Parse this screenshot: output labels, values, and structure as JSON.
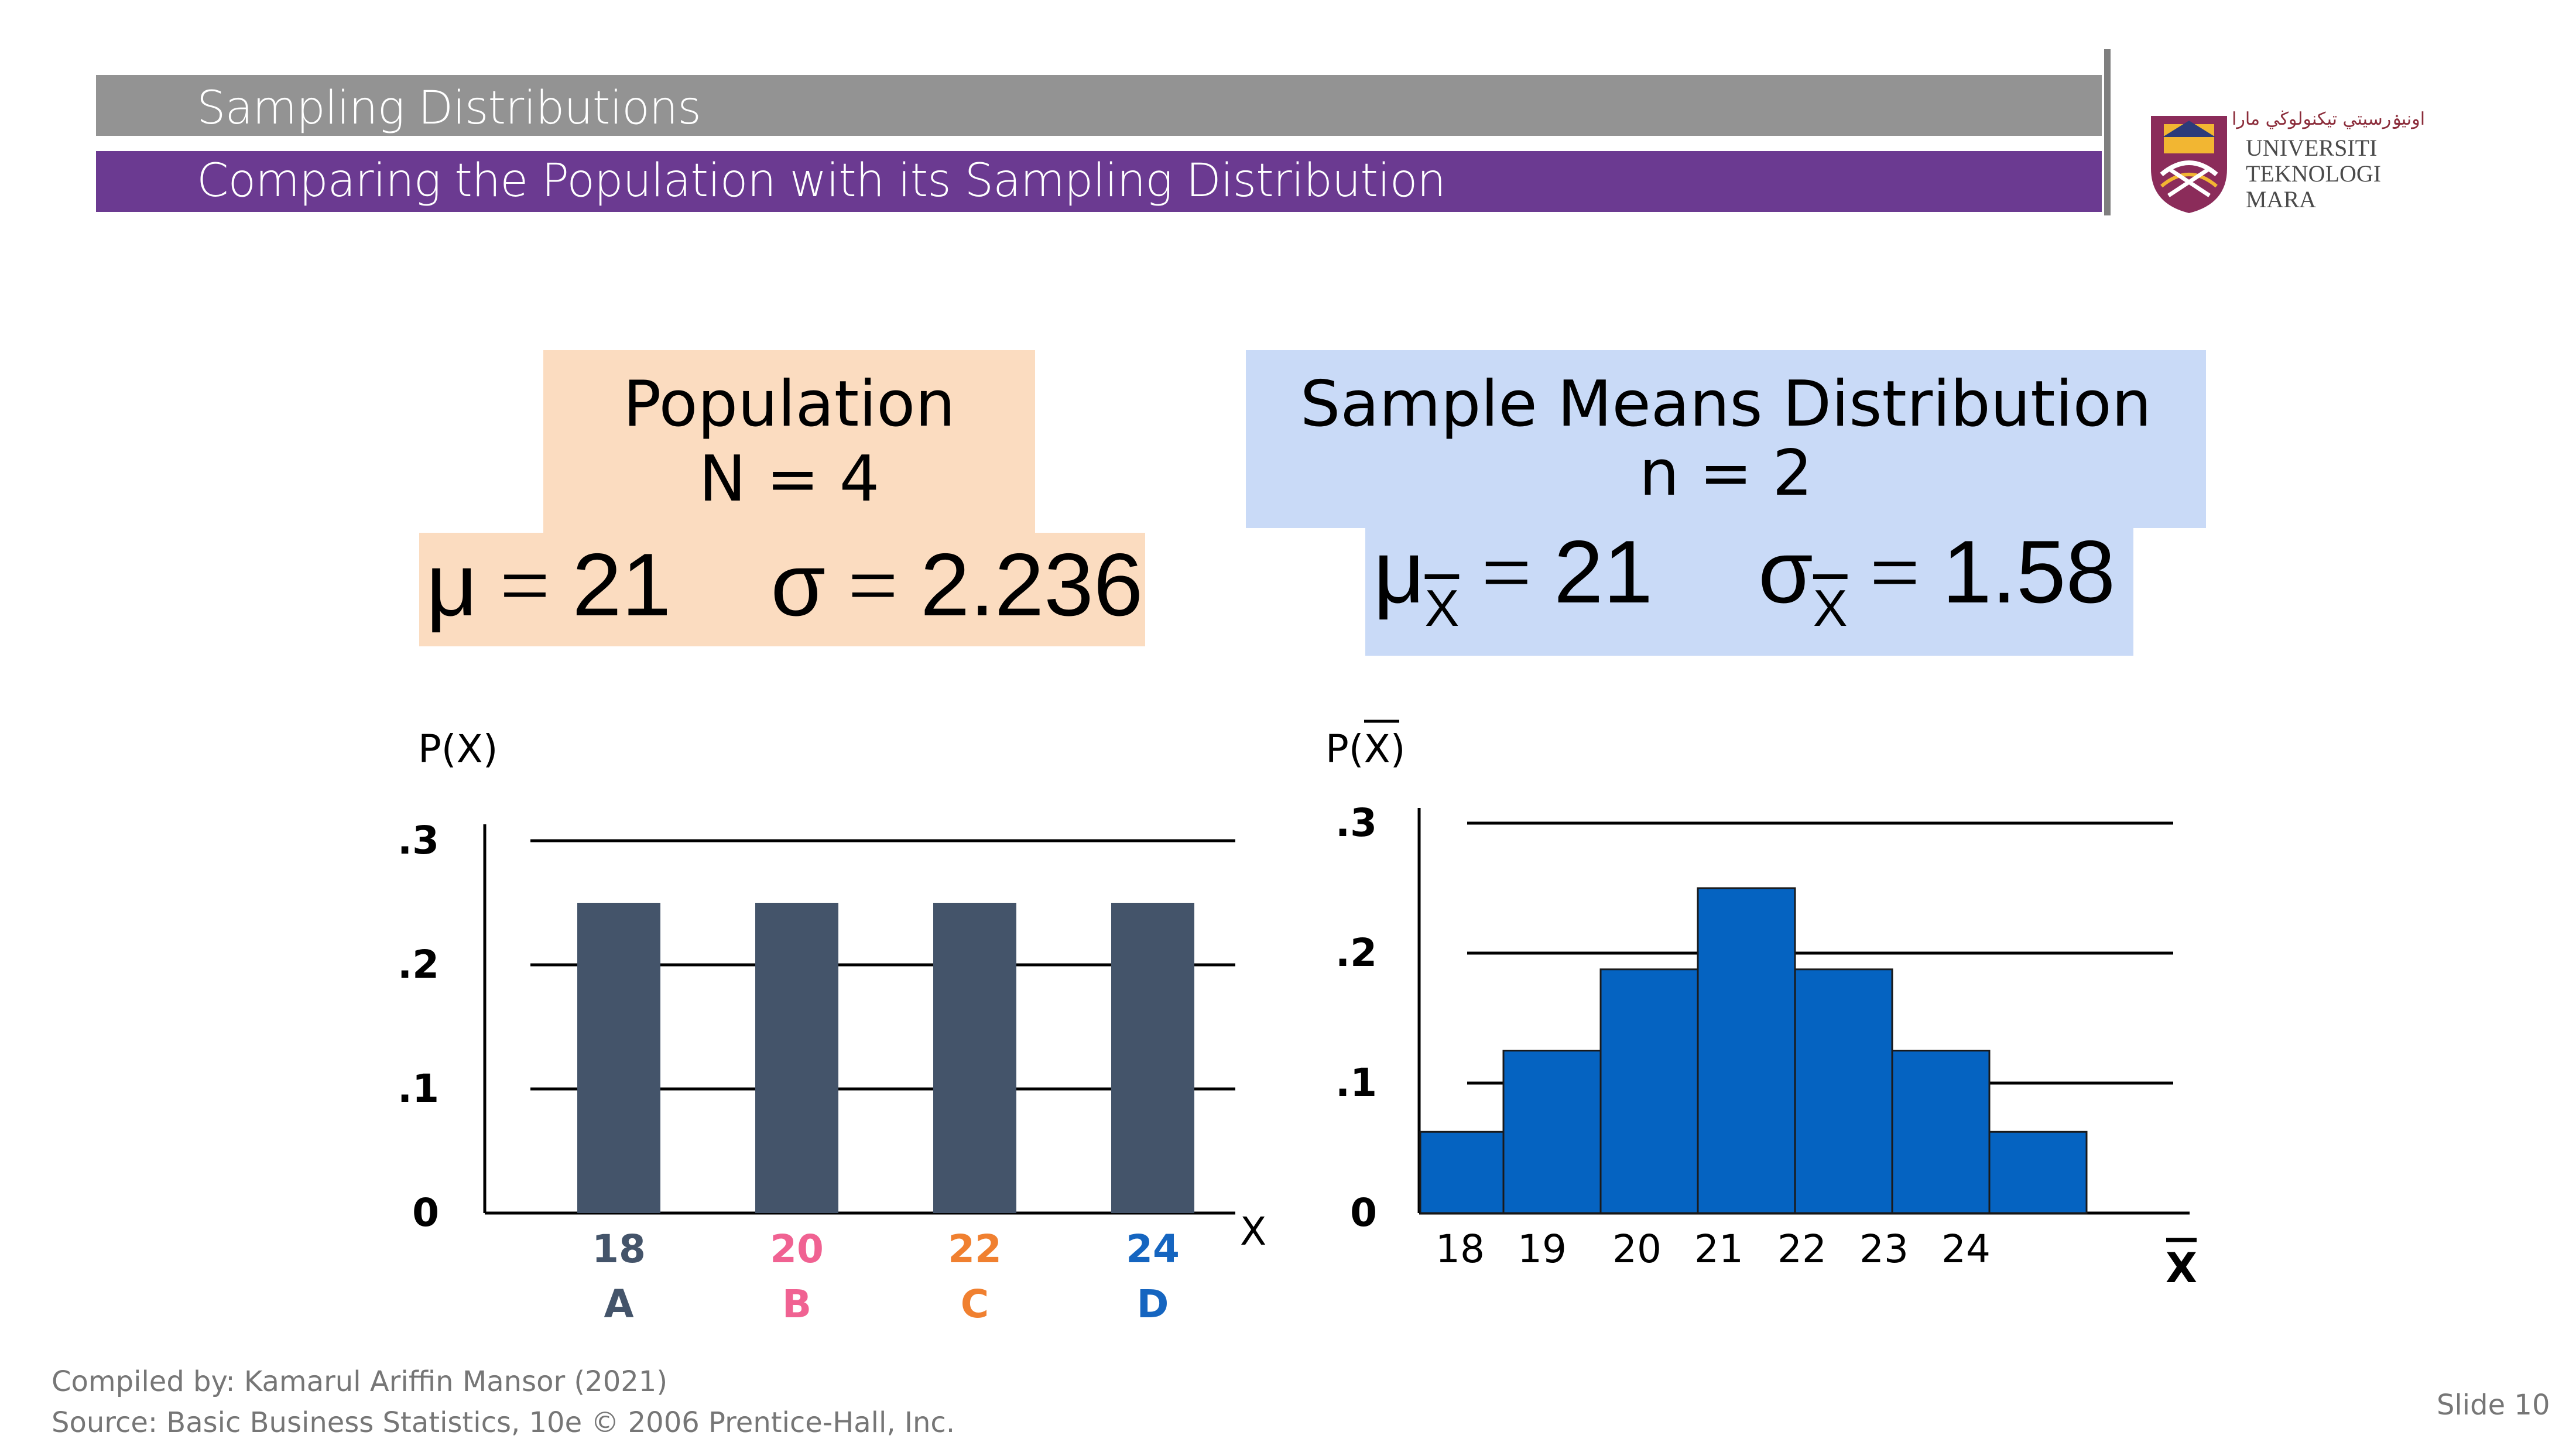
{
  "header": {
    "title": "Sampling Distributions",
    "subtitle": "Comparing the Population with its Sampling Distribution"
  },
  "logo": {
    "arabic": "اونيۏرسيتي تيكنولوڬي مارا",
    "line1": "UNIVERSITI",
    "line2": "TEKNOLOGI",
    "line3": "MARA"
  },
  "population": {
    "title": "Population",
    "size": "N = 4",
    "mu_symbol": "μ",
    "mu_value": "21",
    "sigma_symbol": "σ",
    "sigma_value": "2.236"
  },
  "sample_means": {
    "title": "Sample Means Distribution",
    "size": "n = 2",
    "mu_symbol": "μ",
    "mu_sub": "X",
    "mu_value": "21",
    "sigma_symbol": "σ",
    "sigma_sub": "X",
    "sigma_value": "1.58"
  },
  "chart_data": [
    {
      "type": "bar",
      "ylabel": "P(X)",
      "xlabel": "X",
      "categories": [
        "18",
        "20",
        "22",
        "24"
      ],
      "category_letters": [
        "A",
        "B",
        "C",
        "D"
      ],
      "category_colors": [
        "#44546a",
        "#f06292",
        "#f08030",
        "#1565c0"
      ],
      "values": [
        0.25,
        0.25,
        0.25,
        0.25
      ],
      "yticks": [
        ".3",
        ".2",
        ".1",
        "0"
      ],
      "ytick_values": [
        0.3,
        0.2,
        0.1,
        0
      ],
      "ylim": [
        0,
        0.3
      ],
      "bar_color": "#44546a",
      "grid": true
    },
    {
      "type": "bar",
      "ylabel": "P(X)",
      "xlabel": "X",
      "categories": [
        "18",
        "19",
        "20",
        "21",
        "22",
        "23",
        "24"
      ],
      "values": [
        0.0625,
        0.125,
        0.1875,
        0.25,
        0.1875,
        0.125,
        0.0625
      ],
      "yticks": [
        ".3",
        ".2",
        ".1",
        "0"
      ],
      "ytick_values": [
        0.3,
        0.2,
        0.1,
        0
      ],
      "ylim": [
        0,
        0.3
      ],
      "bar_color": "#0563c1",
      "grid": true
    }
  ],
  "footer": {
    "compiled": "Compiled by: Kamarul Ariffin Mansor (2021)",
    "source": "Source: Basic Business Statistics, 10e © 2006 Prentice-Hall, Inc.",
    "slide": "Slide 10"
  }
}
